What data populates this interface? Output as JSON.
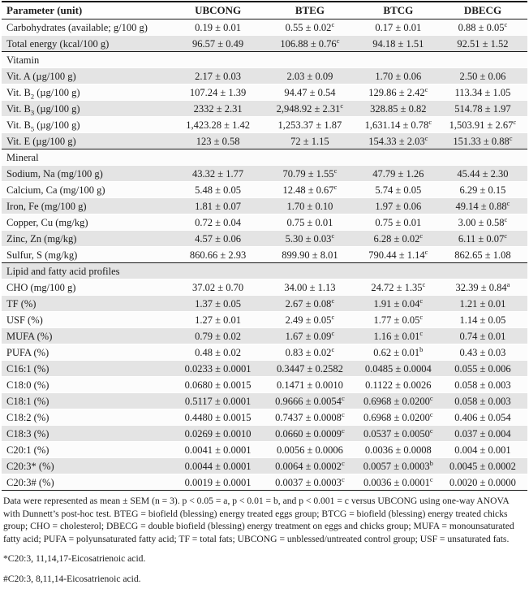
{
  "colors": {
    "row_shade": "#e4e4e4",
    "row_light": "#fcfcfc",
    "rule": "#1a1a1a"
  },
  "table": {
    "columns": [
      "Parameter (unit)",
      "UBCONG",
      "BTEG",
      "BTCG",
      "DBECG"
    ],
    "sections": [
      {
        "heading": "",
        "rows": [
          {
            "param": "Carbohydrates (available; g/100 g)",
            "param_sub": "",
            "param_rest": "",
            "cells": [
              {
                "v": "0.19 ± 0.01",
                "sup": ""
              },
              {
                "v": "0.55 ± 0.02",
                "sup": "c"
              },
              {
                "v": "0.17 ± 0.01",
                "sup": ""
              },
              {
                "v": "0.88 ± 0.05",
                "sup": "c"
              }
            ]
          },
          {
            "param": "Total energy (kcal/100 g)",
            "param_sub": "",
            "param_rest": "",
            "cells": [
              {
                "v": "96.57 ± 0.49",
                "sup": ""
              },
              {
                "v": "106.88 ± 0.76",
                "sup": "c"
              },
              {
                "v": "94.18 ± 1.51",
                "sup": ""
              },
              {
                "v": "92.51 ± 1.52",
                "sup": ""
              }
            ]
          }
        ]
      },
      {
        "heading": "Vitamin",
        "rows": [
          {
            "param": "Vit. A (µg/100 g)",
            "param_sub": "",
            "param_rest": "",
            "cells": [
              {
                "v": "2.17 ± 0.03",
                "sup": ""
              },
              {
                "v": "2.03 ± 0.09",
                "sup": ""
              },
              {
                "v": "1.70 ± 0.06",
                "sup": ""
              },
              {
                "v": "2.50 ± 0.06",
                "sup": ""
              }
            ]
          },
          {
            "param": "Vit. B",
            "param_sub": "2",
            "param_rest": " (µg/100 g)",
            "cells": [
              {
                "v": "107.24 ± 1.39",
                "sup": ""
              },
              {
                "v": "94.47 ± 0.54",
                "sup": ""
              },
              {
                "v": "129.86 ± 2.42",
                "sup": "c"
              },
              {
                "v": "113.34 ± 1.05",
                "sup": ""
              }
            ]
          },
          {
            "param": "Vit. B",
            "param_sub": "3",
            "param_rest": " (µg/100 g)",
            "cells": [
              {
                "v": "2332 ± 2.31",
                "sup": ""
              },
              {
                "v": "2,948.92 ± 2.31",
                "sup": "c"
              },
              {
                "v": "328.85 ± 0.82",
                "sup": ""
              },
              {
                "v": "514.78 ± 1.97",
                "sup": ""
              }
            ]
          },
          {
            "param": "Vit. B",
            "param_sub": "5",
            "param_rest": " (µg/100 g)",
            "cells": [
              {
                "v": "1,423.28 ± 1.42",
                "sup": ""
              },
              {
                "v": "1,253.37 ± 1.87",
                "sup": ""
              },
              {
                "v": "1,631.14 ± 0.78",
                "sup": "c"
              },
              {
                "v": "1,503.91 ± 2.67",
                "sup": "c"
              }
            ]
          },
          {
            "param": "Vit. E (µg/100 g)",
            "param_sub": "",
            "param_rest": "",
            "cells": [
              {
                "v": "123 ± 0.58",
                "sup": ""
              },
              {
                "v": "72 ± 1.15",
                "sup": ""
              },
              {
                "v": "154.33 ± 2.03",
                "sup": "c"
              },
              {
                "v": "151.33 ± 0.88",
                "sup": "c"
              }
            ]
          }
        ]
      },
      {
        "heading": "Mineral",
        "rows": [
          {
            "param": "Sodium, Na (mg/100 g)",
            "param_sub": "",
            "param_rest": "",
            "cells": [
              {
                "v": "43.32 ± 1.77",
                "sup": ""
              },
              {
                "v": "70.79 ± 1.55",
                "sup": "c"
              },
              {
                "v": "47.79 ± 1.26",
                "sup": ""
              },
              {
                "v": "45.44 ± 2.30",
                "sup": ""
              }
            ]
          },
          {
            "param": "Calcium, Ca (mg/100 g)",
            "param_sub": "",
            "param_rest": "",
            "cells": [
              {
                "v": "5.48 ± 0.05",
                "sup": ""
              },
              {
                "v": "12.48 ± 0.67",
                "sup": "c"
              },
              {
                "v": "5.74 ± 0.05",
                "sup": ""
              },
              {
                "v": "6.29 ± 0.15",
                "sup": ""
              }
            ]
          },
          {
            "param": "Iron, Fe (mg/100 g)",
            "param_sub": "",
            "param_rest": "",
            "cells": [
              {
                "v": "1.81 ± 0.07",
                "sup": ""
              },
              {
                "v": "1.70 ± 0.10",
                "sup": ""
              },
              {
                "v": "1.97 ± 0.06",
                "sup": ""
              },
              {
                "v": "49.14 ± 0.88",
                "sup": "c"
              }
            ]
          },
          {
            "param": "Copper, Cu (mg/kg)",
            "param_sub": "",
            "param_rest": "",
            "cells": [
              {
                "v": "0.72 ± 0.04",
                "sup": ""
              },
              {
                "v": "0.75 ± 0.01",
                "sup": ""
              },
              {
                "v": "0.75 ± 0.01",
                "sup": ""
              },
              {
                "v": "3.00 ± 0.58",
                "sup": "c"
              }
            ]
          },
          {
            "param": "Zinc, Zn (mg/kg)",
            "param_sub": "",
            "param_rest": "",
            "cells": [
              {
                "v": "4.57 ± 0.06",
                "sup": ""
              },
              {
                "v": "5.30 ± 0.03",
                "sup": "c"
              },
              {
                "v": "6.28 ± 0.02",
                "sup": "c"
              },
              {
                "v": "6.11 ± 0.07",
                "sup": "c"
              }
            ]
          },
          {
            "param": "Sulfur, S (mg/kg)",
            "param_sub": "",
            "param_rest": "",
            "cells": [
              {
                "v": "860.66 ± 2.93",
                "sup": ""
              },
              {
                "v": "899.90 ± 8.01",
                "sup": ""
              },
              {
                "v": "790.44 ± 1.14",
                "sup": "c"
              },
              {
                "v": "862.65 ± 1.08",
                "sup": ""
              }
            ]
          }
        ]
      },
      {
        "heading": "Lipid and fatty acid profiles",
        "rows": [
          {
            "param": "CHO (mg/100 g)",
            "param_sub": "",
            "param_rest": "",
            "cells": [
              {
                "v": "37.02 ± 0.70",
                "sup": ""
              },
              {
                "v": "34.00 ± 1.13",
                "sup": ""
              },
              {
                "v": "24.72 ± 1.35",
                "sup": "c"
              },
              {
                "v": "32.39 ± 0.84",
                "sup": "a"
              }
            ]
          },
          {
            "param": "TF (%)",
            "param_sub": "",
            "param_rest": "",
            "cells": [
              {
                "v": "1.37 ± 0.05",
                "sup": ""
              },
              {
                "v": "2.67 ± 0.08",
                "sup": "c"
              },
              {
                "v": "1.91 ± 0.04",
                "sup": "c"
              },
              {
                "v": "1.21 ± 0.01",
                "sup": ""
              }
            ]
          },
          {
            "param": "USF (%)",
            "param_sub": "",
            "param_rest": "",
            "cells": [
              {
                "v": "1.27 ± 0.01",
                "sup": ""
              },
              {
                "v": "2.49 ± 0.05",
                "sup": "c"
              },
              {
                "v": "1.77 ± 0.05",
                "sup": "c"
              },
              {
                "v": "1.14 ± 0.05",
                "sup": ""
              }
            ]
          },
          {
            "param": "MUFA (%)",
            "param_sub": "",
            "param_rest": "",
            "cells": [
              {
                "v": "0.79 ± 0.02",
                "sup": ""
              },
              {
                "v": "1.67 ± 0.09",
                "sup": "c"
              },
              {
                "v": "1.16 ± 0.01",
                "sup": "c"
              },
              {
                "v": "0.74 ± 0.01",
                "sup": ""
              }
            ]
          },
          {
            "param": "PUFA (%)",
            "param_sub": "",
            "param_rest": "",
            "cells": [
              {
                "v": "0.48 ± 0.02",
                "sup": ""
              },
              {
                "v": "0.83 ± 0.02",
                "sup": "c"
              },
              {
                "v": "0.62 ± 0.01",
                "sup": "b"
              },
              {
                "v": "0.43 ± 0.03",
                "sup": ""
              }
            ]
          },
          {
            "param": "C16:1 (%)",
            "param_sub": "",
            "param_rest": "",
            "cells": [
              {
                "v": "0.0233 ± 0.0001",
                "sup": ""
              },
              {
                "v": "0.3447 ± 0.2582",
                "sup": ""
              },
              {
                "v": "0.0485 ± 0.0004",
                "sup": ""
              },
              {
                "v": "0.055 ± 0.006",
                "sup": ""
              }
            ]
          },
          {
            "param": "C18:0 (%)",
            "param_sub": "",
            "param_rest": "",
            "cells": [
              {
                "v": "0.0680 ± 0.0015",
                "sup": ""
              },
              {
                "v": "0.1471 ± 0.0010",
                "sup": ""
              },
              {
                "v": "0.1122 ± 0.0026",
                "sup": ""
              },
              {
                "v": "0.058 ± 0.003",
                "sup": ""
              }
            ]
          },
          {
            "param": "C18:1 (%)",
            "param_sub": "",
            "param_rest": "",
            "cells": [
              {
                "v": "0.5117 ± 0.0001",
                "sup": ""
              },
              {
                "v": "0.9666 ± 0.0054",
                "sup": "c"
              },
              {
                "v": "0.6968 ± 0.0200",
                "sup": "c"
              },
              {
                "v": "0.058 ± 0.003",
                "sup": ""
              }
            ]
          },
          {
            "param": "C18:2 (%)",
            "param_sub": "",
            "param_rest": "",
            "cells": [
              {
                "v": "0.4480 ± 0.0015",
                "sup": ""
              },
              {
                "v": "0.7437 ± 0.0008",
                "sup": "c"
              },
              {
                "v": "0.6968 ± 0.0200",
                "sup": "c"
              },
              {
                "v": "0.406 ± 0.054",
                "sup": ""
              }
            ]
          },
          {
            "param": "C18:3 (%)",
            "param_sub": "",
            "param_rest": "",
            "cells": [
              {
                "v": "0.0269 ± 0.0010",
                "sup": ""
              },
              {
                "v": "0.0660 ± 0.0009",
                "sup": "c"
              },
              {
                "v": "0.0537 ± 0.0050",
                "sup": "c"
              },
              {
                "v": "0.037 ± 0.004",
                "sup": ""
              }
            ]
          },
          {
            "param": "C20:1 (%)",
            "param_sub": "",
            "param_rest": "",
            "cells": [
              {
                "v": "0.0041 ± 0.0001",
                "sup": ""
              },
              {
                "v": "0.0056 ± 0.0006",
                "sup": ""
              },
              {
                "v": "0.0036 ± 0.0008",
                "sup": ""
              },
              {
                "v": "0.004 ± 0.001",
                "sup": ""
              }
            ]
          },
          {
            "param": "C20:3* (%)",
            "param_sub": "",
            "param_rest": "",
            "cells": [
              {
                "v": "0.0044 ± 0.0001",
                "sup": ""
              },
              {
                "v": "0.0064 ± 0.0002",
                "sup": "c"
              },
              {
                "v": "0.0057 ± 0.0003",
                "sup": "b"
              },
              {
                "v": "0.0045 ± 0.0002",
                "sup": ""
              }
            ]
          },
          {
            "param": "C20:3# (%)",
            "param_sub": "",
            "param_rest": "",
            "cells": [
              {
                "v": "0.0019 ± 0.0001",
                "sup": ""
              },
              {
                "v": "0.0037 ± 0.0003",
                "sup": "c"
              },
              {
                "v": "0.0036 ± 0.0001",
                "sup": "c"
              },
              {
                "v": "0.0020 ± 0.0000",
                "sup": ""
              }
            ]
          }
        ]
      }
    ]
  },
  "footnotes": {
    "main": "Data were represented as mean ± SEM (n = 3). p < 0.05 = a, p < 0.01 = b, and p < 0.001 = c versus UBCONG using one-way ANOVA with Dunnett’s post-hoc test. BTEG = biofield (blessing) energy treated eggs group; BTCG = biofield (blessing) energy treated chicks group; CHO = cholesterol; DBECG = double biofield (blessing) energy treatment on eggs and chicks group; MUFA = monounsaturated fatty acid; PUFA = polyunsaturated fatty acid; TF = total fats; UBCONG = unblessed/untreated control group; USF = unsaturated fats.",
    "star": "*C20:3, 11,14,17-Eicosatrienoic acid.",
    "hash": "#C20:3, 8,11,14-Eicosatrienoic acid."
  }
}
